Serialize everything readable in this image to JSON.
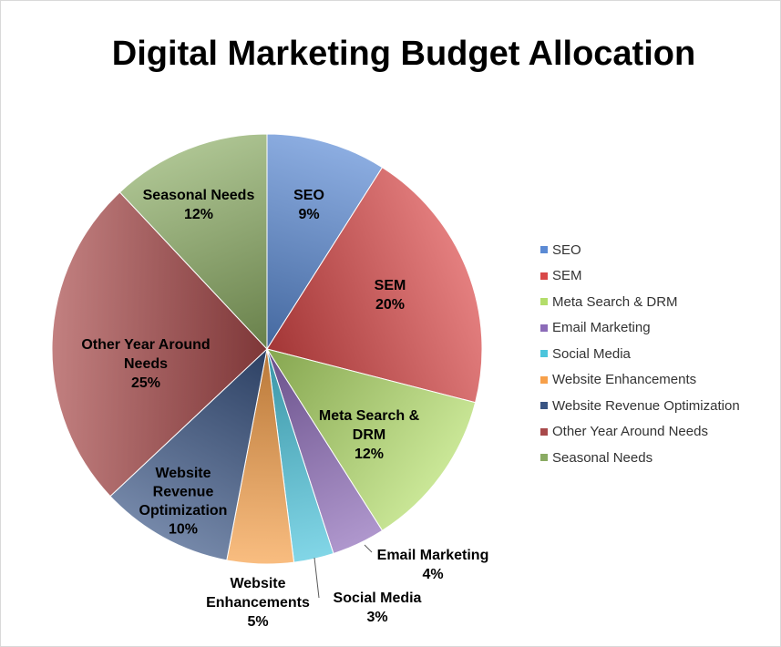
{
  "chart_data": {
    "type": "pie",
    "title": "Digital Marketing Budget Allocation",
    "legend_position": "right",
    "slices": [
      {
        "name": "SEO",
        "value": 9,
        "percent_label": "9%",
        "color": "#5b8ad4",
        "label_lines": [
          "SEO"
        ]
      },
      {
        "name": "SEM",
        "value": 20,
        "percent_label": "20%",
        "color": "#d94848",
        "label_lines": [
          "SEM"
        ]
      },
      {
        "name": "Meta Search & DRM",
        "value": 12,
        "percent_label": "12%",
        "color": "#b3dd6a",
        "label_lines": [
          "Meta Search &",
          "DRM"
        ]
      },
      {
        "name": "Email Marketing",
        "value": 4,
        "percent_label": "4%",
        "color": "#8c6bb8",
        "label_lines": [
          "Email Marketing"
        ]
      },
      {
        "name": "Social Media",
        "value": 3,
        "percent_label": "3%",
        "color": "#4cc5dc",
        "label_lines": [
          "Social Media"
        ]
      },
      {
        "name": "Website Enhancements",
        "value": 5,
        "percent_label": "5%",
        "color": "#f7a04a",
        "label_lines": [
          "Website",
          "Enhancements"
        ]
      },
      {
        "name": "Website Revenue Optimization",
        "value": 10,
        "percent_label": "10%",
        "color": "#3a5584",
        "label_lines": [
          "Website",
          "Revenue",
          "Optimization"
        ]
      },
      {
        "name": "Other Year Around Needs",
        "value": 25,
        "percent_label": "25%",
        "color": "#a8494a",
        "label_lines": [
          "Other Year Around",
          "Needs"
        ]
      },
      {
        "name": "Seasonal Needs",
        "value": 12,
        "percent_label": "12%",
        "color": "#8aab63",
        "label_lines": [
          "Seasonal Needs"
        ]
      }
    ]
  }
}
